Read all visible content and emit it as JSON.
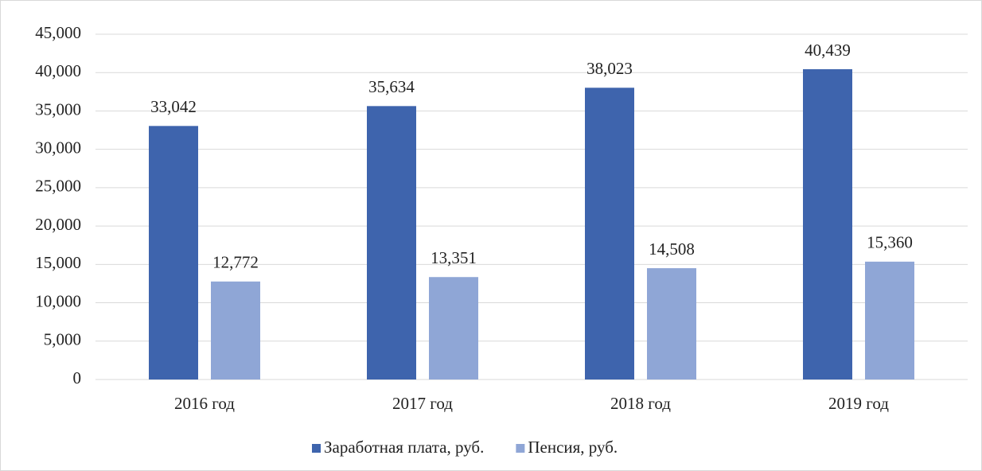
{
  "chart_data": {
    "type": "bar",
    "categories": [
      "2016 год",
      "2017 год",
      "2018 год",
      "2019 год"
    ],
    "series": [
      {
        "name": "Заработная плата, руб.",
        "color": "#3e64ad",
        "values": [
          33042,
          35634,
          38023,
          40439
        ],
        "value_labels": [
          "33,042",
          "35,634",
          "38,023",
          "40,439"
        ]
      },
      {
        "name": "Пенсия, руб.",
        "color": "#8fa6d6",
        "values": [
          12772,
          13351,
          14508,
          15360
        ],
        "value_labels": [
          "12,772",
          "13,351",
          "14,508",
          "15,360"
        ]
      }
    ],
    "ylim": [
      0,
      45000
    ],
    "yticks": [
      0,
      {
        "value": 5000,
        "label": "5,000"
      },
      {
        "value": 10000,
        "label": "10,000"
      },
      {
        "value": 15000,
        "label": "15,000"
      },
      {
        "value": 20000,
        "label": "20,000"
      },
      {
        "value": 25000,
        "label": "25,000"
      },
      {
        "value": 30000,
        "label": "30,000"
      },
      {
        "value": 35000,
        "label": "35,000"
      },
      {
        "value": 40000,
        "label": "40,000"
      },
      {
        "value": 45000,
        "label": "45,000"
      }
    ],
    "grid": true,
    "legend": "bottom"
  }
}
